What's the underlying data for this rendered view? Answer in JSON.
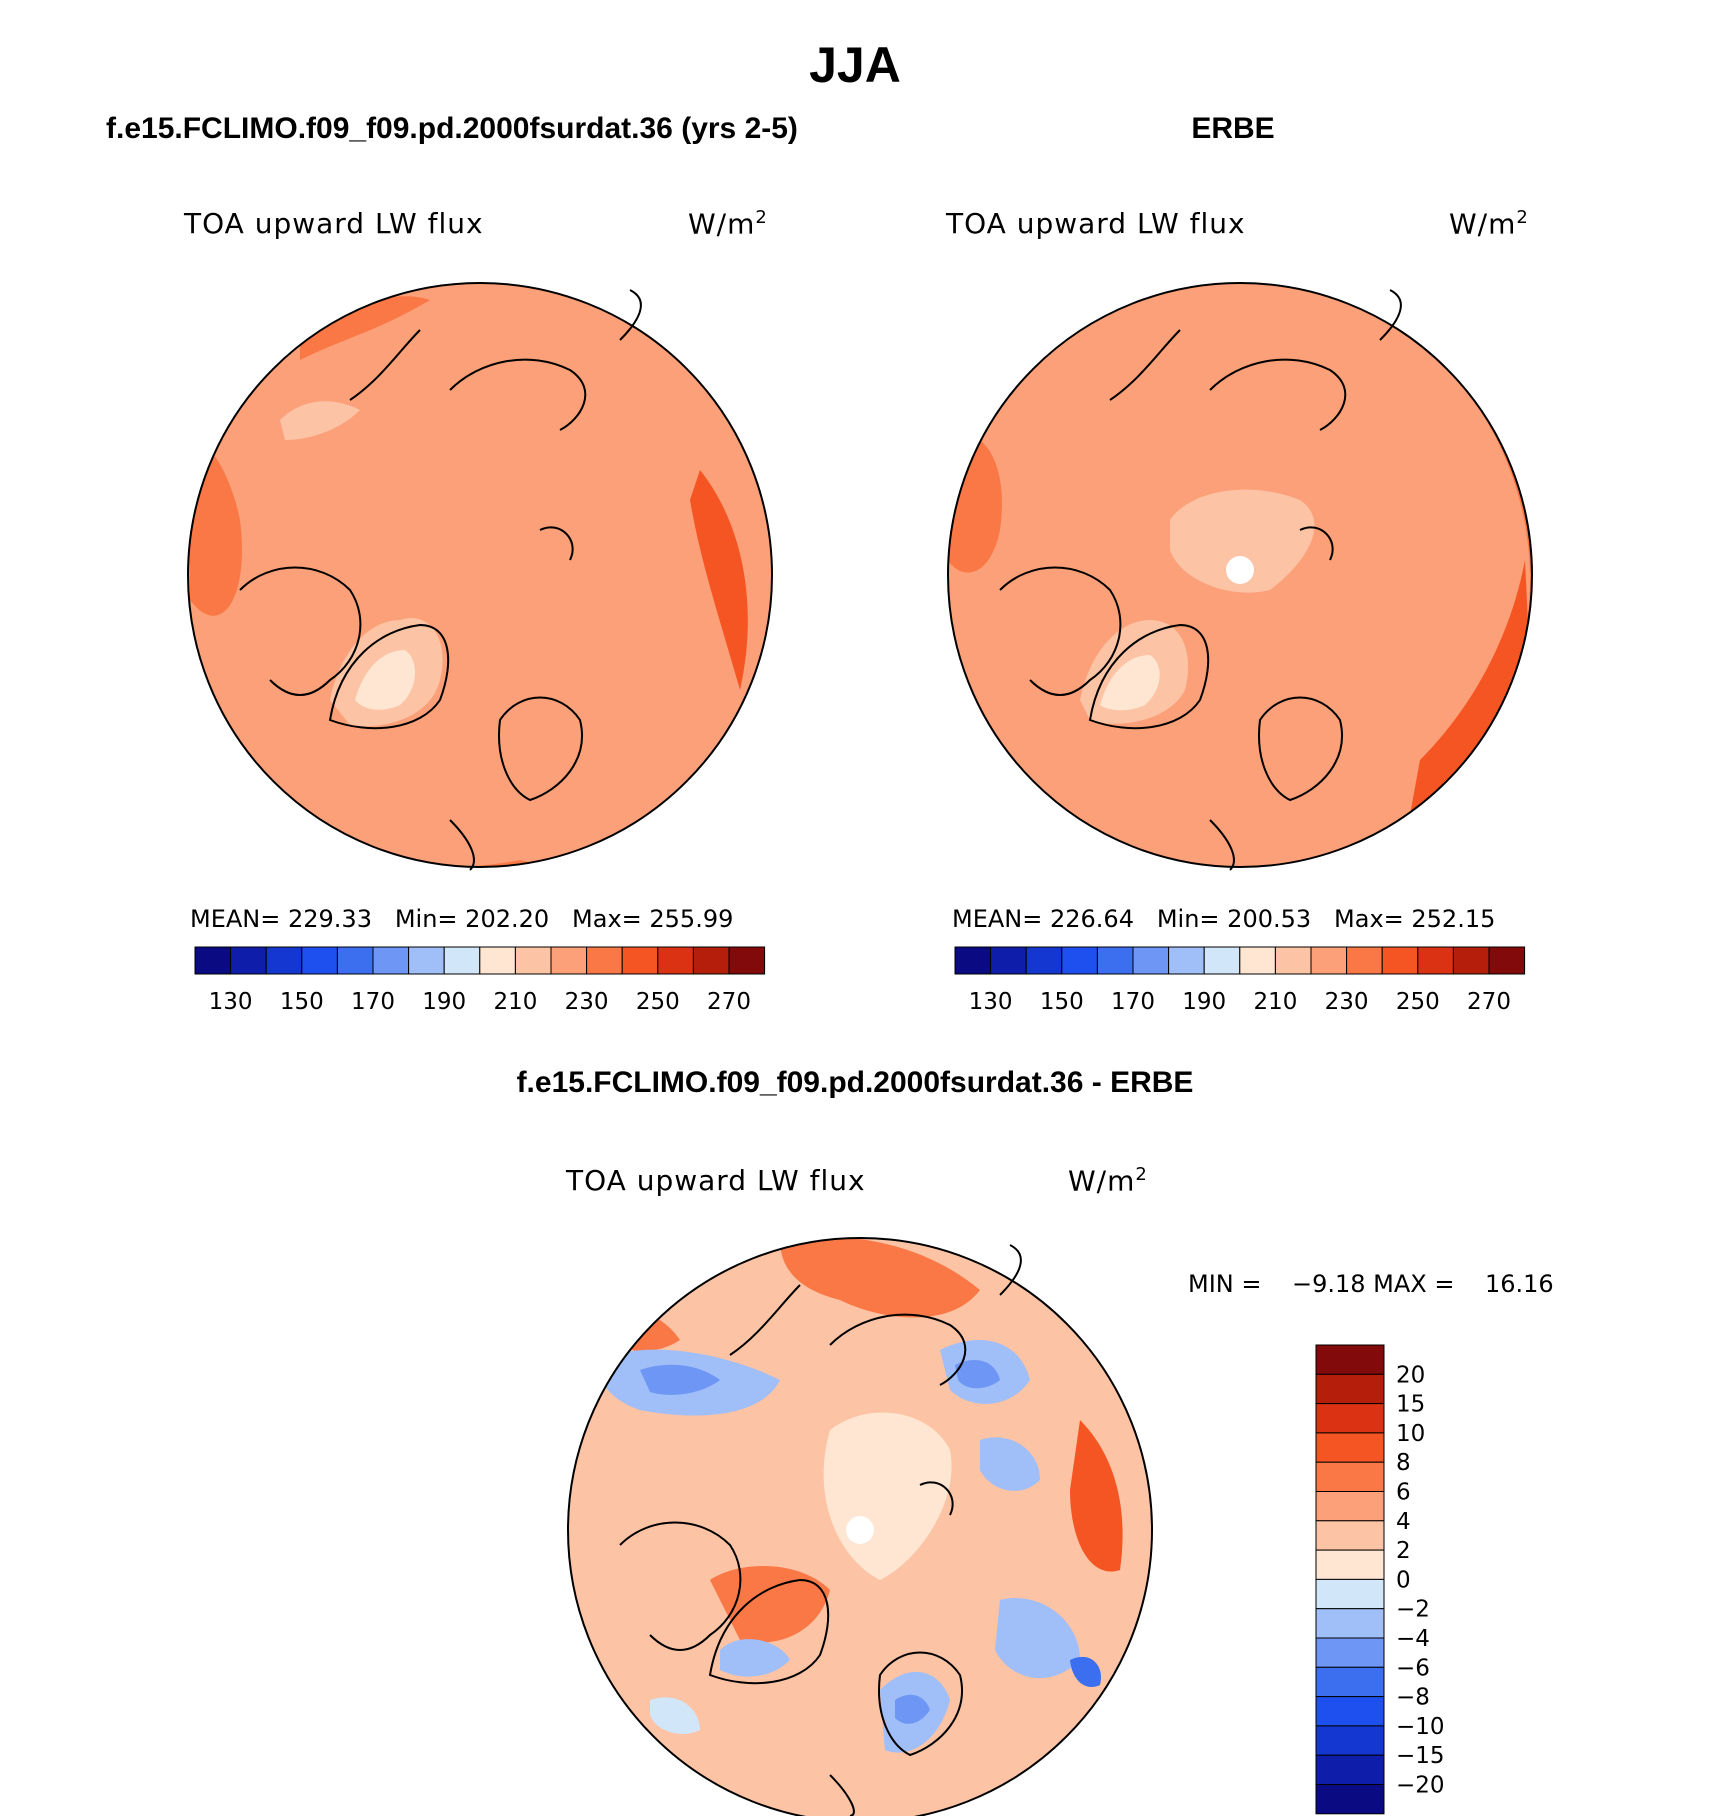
{
  "page": {
    "season": "JJA"
  },
  "panels": [
    {
      "header": "f.e15.FCLIMO.f09_f09.pd.2000fsurdat.36 (yrs 2-5)",
      "variable": "TOA upward LW flux",
      "units": "W/m",
      "units_exp": "2",
      "stats_text": "MEAN= 229.33   Min= 202.20   Max= 255.99"
    },
    {
      "header": "ERBE",
      "variable": "TOA upward LW flux",
      "units": "W/m",
      "units_exp": "2",
      "stats_text": "MEAN= 226.64   Min= 200.53   Max= 252.15"
    },
    {
      "header": "f.e15.FCLIMO.f09_f09.pd.2000fsurdat.36 - ERBE",
      "variable": "TOA upward LW flux",
      "units": "W/m",
      "units_exp": "2",
      "stats_text": "MIN =    −9.18 MAX =    16.16"
    }
  ],
  "chart_data": [
    {
      "type": "heatmap",
      "projection": "north-polar-stereographic",
      "title": "TOA upward LW flux",
      "source": "f.e15.FCLIMO.f09_f09.pd.2000fsurdat.36 (yrs 2-5)",
      "mean": 229.33,
      "min": 202.2,
      "max": 255.99,
      "colorbar": {
        "orientation": "horizontal",
        "levels": [
          130,
          140,
          150,
          160,
          170,
          180,
          190,
          200,
          210,
          220,
          230,
          240,
          250,
          260,
          270
        ],
        "tick_labels": [
          "130",
          "150",
          "170",
          "190",
          "210",
          "230",
          "250",
          "270"
        ],
        "colors": [
          "#0a0a82",
          "#0f1eaa",
          "#1437d2",
          "#1e50f0",
          "#3c6ef0",
          "#6e96f5",
          "#a0bef8",
          "#d2e6fa",
          "#fee6d2",
          "#fcc3a5",
          "#fba078",
          "#f97846",
          "#f55523",
          "#dc3214",
          "#b41e0a",
          "#820a0a"
        ]
      }
    },
    {
      "type": "heatmap",
      "projection": "north-polar-stereographic",
      "title": "TOA upward LW flux",
      "source": "ERBE",
      "mean": 226.64,
      "min": 200.53,
      "max": 252.15,
      "colorbar": {
        "orientation": "horizontal",
        "levels": [
          130,
          140,
          150,
          160,
          170,
          180,
          190,
          200,
          210,
          220,
          230,
          240,
          250,
          260,
          270
        ],
        "tick_labels": [
          "130",
          "150",
          "170",
          "190",
          "210",
          "230",
          "250",
          "270"
        ],
        "colors": [
          "#0a0a82",
          "#0f1eaa",
          "#1437d2",
          "#1e50f0",
          "#3c6ef0",
          "#6e96f5",
          "#a0bef8",
          "#d2e6fa",
          "#fee6d2",
          "#fcc3a5",
          "#fba078",
          "#f97846",
          "#f55523",
          "#dc3214",
          "#b41e0a",
          "#820a0a"
        ]
      }
    },
    {
      "type": "heatmap",
      "projection": "north-polar-stereographic",
      "title": "TOA upward LW flux",
      "source": "f.e15.FCLIMO.f09_f09.pd.2000fsurdat.36 - ERBE",
      "min": -9.18,
      "max": 16.16,
      "colorbar": {
        "orientation": "vertical",
        "tick_labels": [
          "20",
          "15",
          "10",
          "8",
          "6",
          "4",
          "2",
          "0",
          "−2",
          "−4",
          "−6",
          "−8",
          "−10",
          "−15",
          "−20"
        ],
        "colors": [
          "#820a0a",
          "#b41e0a",
          "#dc3214",
          "#f55523",
          "#f97846",
          "#fba078",
          "#fcc3a5",
          "#fee6d2",
          "#d2e6fa",
          "#a0bef8",
          "#6e96f5",
          "#3c6ef0",
          "#1e50f0",
          "#1437d2",
          "#0f1eaa",
          "#0a0a82"
        ]
      }
    }
  ]
}
